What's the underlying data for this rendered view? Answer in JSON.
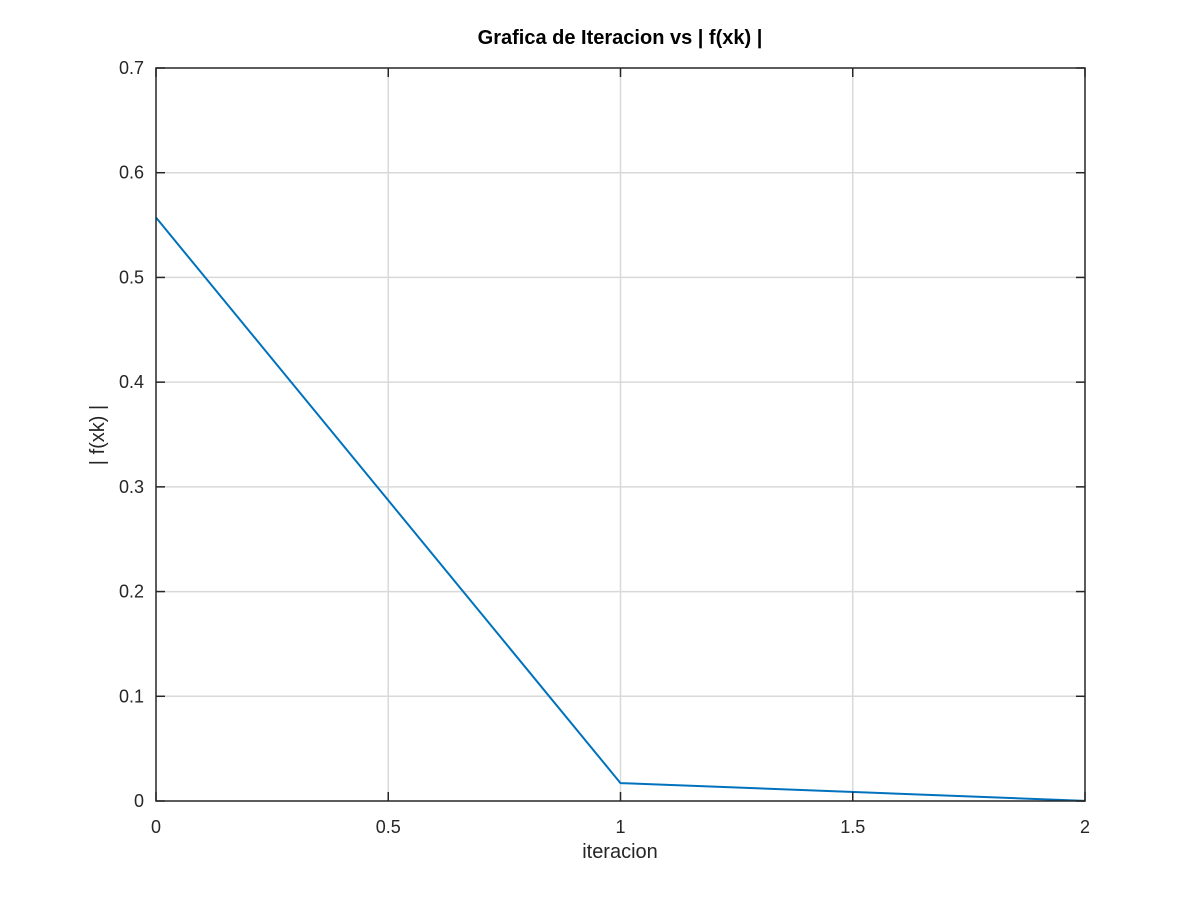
{
  "chart_data": {
    "type": "line",
    "title": "Grafica de Iteracion vs | f(xk) |",
    "xlabel": "iteracion",
    "ylabel": "| f(xk) |",
    "xlim": [
      0,
      2
    ],
    "ylim": [
      0,
      0.7
    ],
    "xticks": [
      0,
      0.5,
      1,
      1.5,
      2
    ],
    "xtick_labels": [
      "0",
      "0.5",
      "1",
      "1.5",
      "2"
    ],
    "yticks": [
      0,
      0.1,
      0.2,
      0.3,
      0.4,
      0.5,
      0.6,
      0.7
    ],
    "ytick_labels": [
      "0",
      "0.1",
      "0.2",
      "0.3",
      "0.4",
      "0.5",
      "0.6",
      "0.7"
    ],
    "grid": true,
    "legend": "none",
    "series": [
      {
        "x": [
          0,
          1,
          2
        ],
        "y": [
          0.5572,
          0.0171,
          0.0001
        ],
        "color": "#0072bd"
      }
    ]
  },
  "colors": {
    "axes": "#262626",
    "grid": "#d9d9d9",
    "line": "#0072bd",
    "background": "#ffffff"
  }
}
